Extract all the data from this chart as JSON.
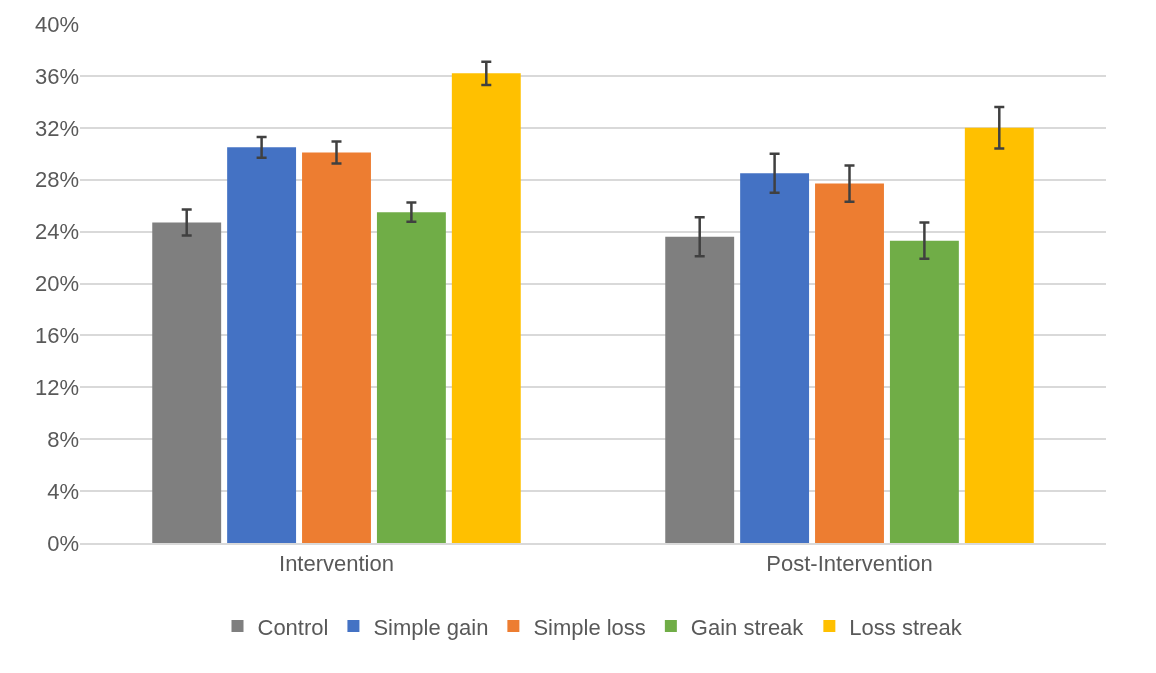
{
  "chart_data": {
    "type": "bar",
    "categories": [
      "Intervention",
      "Post-Intervention"
    ],
    "series": [
      {
        "name": "Control",
        "color": "#7f7f7f",
        "values": [
          24.7,
          23.6
        ],
        "errors": [
          1.0,
          1.5
        ]
      },
      {
        "name": "Simple gain",
        "color": "#4472c4",
        "values": [
          30.5,
          28.5
        ],
        "errors": [
          0.8,
          1.5
        ]
      },
      {
        "name": "Simple loss",
        "color": "#ed7d31",
        "values": [
          30.1,
          27.7
        ],
        "errors": [
          0.85,
          1.4
        ]
      },
      {
        "name": "Gain streak",
        "color": "#70ad47",
        "values": [
          25.5,
          23.3
        ],
        "errors": [
          0.75,
          1.4
        ]
      },
      {
        "name": "Loss streak",
        "color": "#ffc000",
        "values": [
          36.2,
          32.0
        ],
        "errors": [
          0.9,
          1.6
        ]
      }
    ],
    "ylim": [
      0,
      40
    ],
    "yticks": [
      {
        "value": 0,
        "label": "0%"
      },
      {
        "value": 4,
        "label": "4%"
      },
      {
        "value": 8,
        "label": "8%"
      },
      {
        "value": 12,
        "label": "12%"
      },
      {
        "value": 16,
        "label": "16%"
      },
      {
        "value": 20,
        "label": "20%"
      },
      {
        "value": 24,
        "label": "24%"
      },
      {
        "value": 28,
        "label": "28%"
      },
      {
        "value": 32,
        "label": "32%"
      },
      {
        "value": 36,
        "label": "36%"
      },
      {
        "value": 40,
        "label": "40%"
      }
    ],
    "grid": "y",
    "legend": "bottom"
  }
}
